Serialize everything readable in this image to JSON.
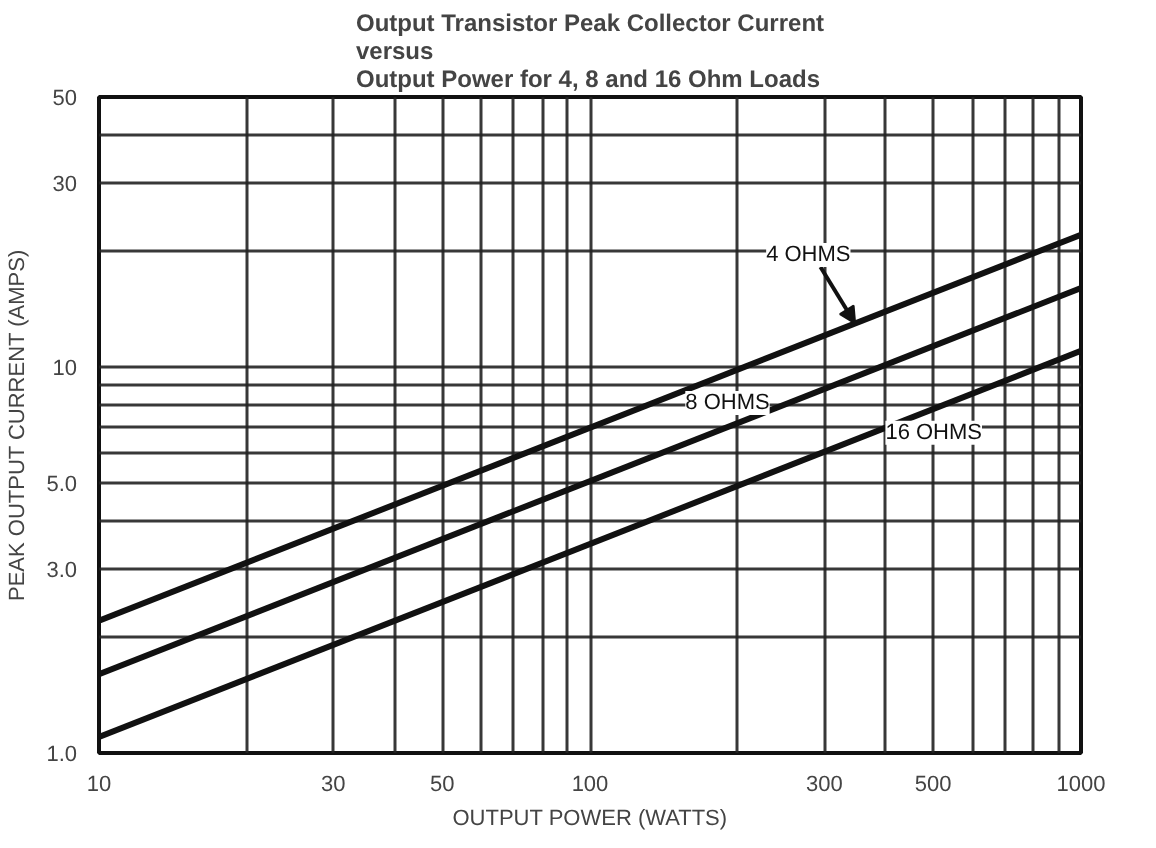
{
  "chart_data": {
    "type": "line",
    "title": "Output Transistor Peak Collector Current\nversus\nOutput Power for 4, 8 and 16 Ohm Loads",
    "xlabel": "OUTPUT POWER (WATTS)",
    "ylabel": "PEAK OUTPUT CURRENT (AMPS)",
    "x": [
      10,
      1000
    ],
    "series": [
      {
        "name": "4 OHMS",
        "color": "#111111",
        "values": [
          2.2,
          22
        ]
      },
      {
        "name": "8 OHMS",
        "color": "#111111",
        "values": [
          1.6,
          16
        ]
      },
      {
        "name": "16 OHMS",
        "color": "#111111",
        "values": [
          1.1,
          11
        ]
      }
    ],
    "log": "xy",
    "xlim": [
      10,
      1000
    ],
    "ylim": [
      1,
      50
    ],
    "xticks": [
      10,
      {
        "value": 20,
        "label": null
      },
      30,
      {
        "value": 40,
        "label": null
      },
      50,
      {
        "value": 60,
        "label": null
      },
      {
        "value": 70,
        "label": null
      },
      {
        "value": 80,
        "label": null
      },
      {
        "value": 90,
        "label": null
      },
      100,
      {
        "value": 200,
        "label": null
      },
      300,
      {
        "value": 400,
        "label": null
      },
      500,
      {
        "value": 600,
        "label": null
      },
      {
        "value": 700,
        "label": null
      },
      {
        "value": 800,
        "label": null
      },
      {
        "value": 900,
        "label": null
      },
      1000
    ],
    "yticks": [
      {
        "value": 1,
        "label": "1.0"
      },
      {
        "value": 2,
        "label": null
      },
      {
        "value": 3,
        "label": "3.0"
      },
      {
        "value": 4,
        "label": null
      },
      {
        "value": 5,
        "label": "5.0"
      },
      {
        "value": 6,
        "label": null
      },
      {
        "value": 7,
        "label": null
      },
      {
        "value": 8,
        "label": null
      },
      {
        "value": 9,
        "label": null
      },
      10,
      {
        "value": 20,
        "label": null
      },
      30,
      {
        "value": 40,
        "label": null
      },
      50
    ],
    "grid": true,
    "legend": false,
    "line_style": "solid",
    "marker": "none"
  }
}
